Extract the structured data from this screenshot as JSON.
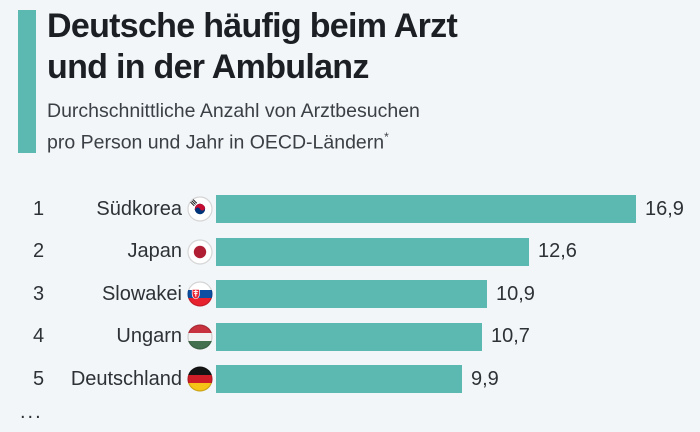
{
  "colors": {
    "background": "#f3f6f8",
    "accent_teal": "#5cb9b2",
    "bar_teal": "#5cb9b2",
    "title_text": "#1c2025",
    "subtitle_text": "#3a4046",
    "row_text": "#2d3237"
  },
  "header": {
    "title_line1": "Deutsche häufig beim Arzt",
    "title_line2": "und in der Ambulanz",
    "subtitle_line1": "Durchschnittliche Anzahl von Arztbesuchen",
    "subtitle_line2": "pro Person und Jahr in OECD-Ländern",
    "subtitle_footnote_marker": "*"
  },
  "chart_data": {
    "type": "bar",
    "orientation": "horizontal",
    "title": "Deutsche häufig beim Arzt und in der Ambulanz",
    "subtitle": "Durchschnittliche Anzahl von Arztbesuchen pro Person und Jahr in OECD-Ländern*",
    "categories": [
      "Südkorea",
      "Japan",
      "Slowakei",
      "Ungarn",
      "Deutschland"
    ],
    "ranks": [
      "1",
      "2",
      "3",
      "4",
      "5"
    ],
    "values": [
      16.9,
      12.6,
      10.9,
      10.7,
      9.9
    ],
    "value_labels": [
      "16,9",
      "12,6",
      "10,9",
      "10,7",
      "9,9"
    ],
    "flags": [
      "south-korea",
      "japan",
      "slovakia",
      "hungary",
      "germany"
    ],
    "xlim": [
      0,
      16.9
    ],
    "grid": false,
    "legend": "none",
    "bar_color": "#5cb9b2",
    "truncation_indicator": "..."
  }
}
